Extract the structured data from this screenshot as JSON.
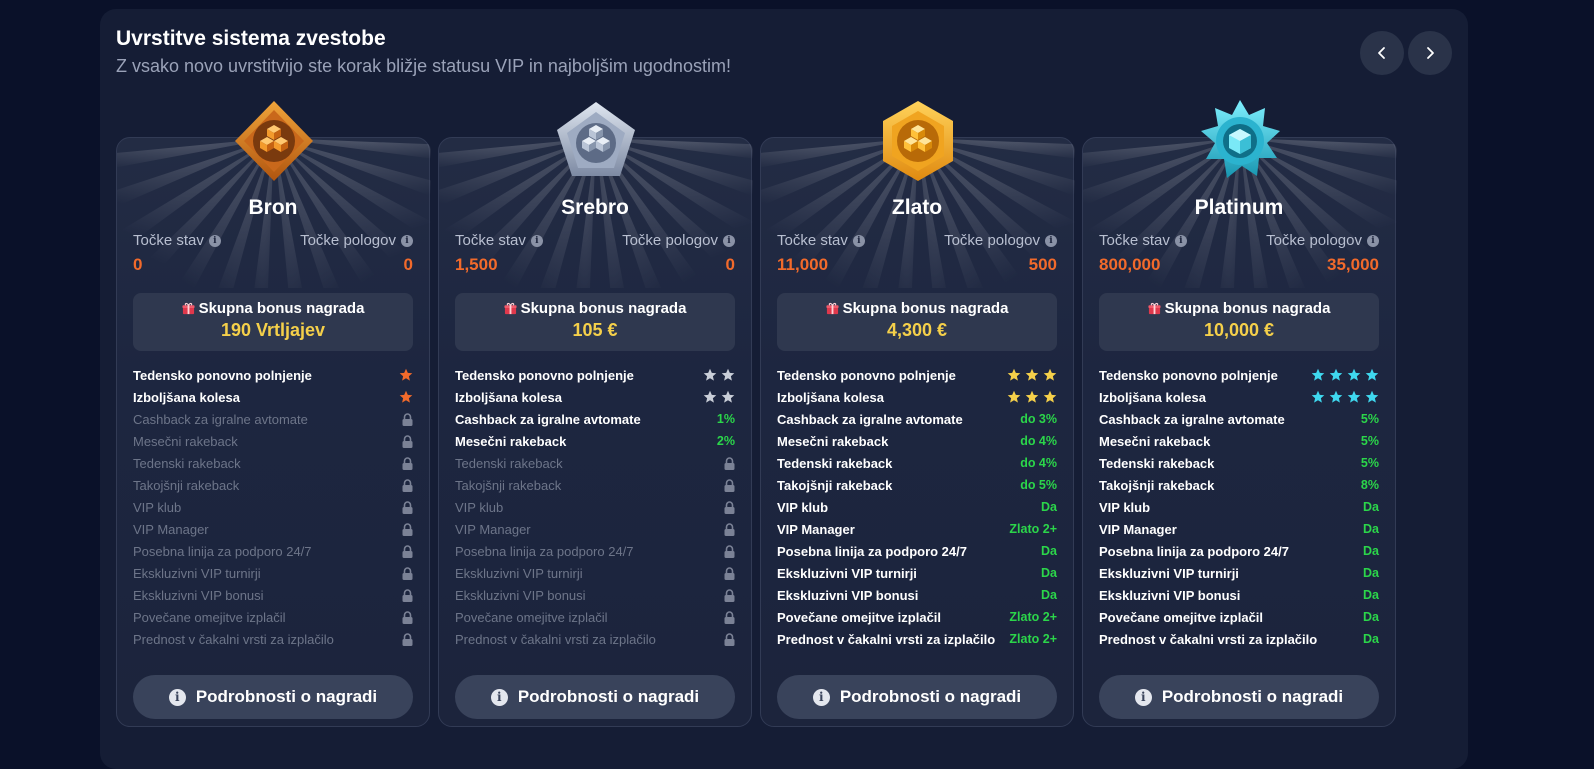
{
  "header": {
    "title": "Uvrstitve sistema zvestobe",
    "subtitle": "Z vsako novo uvrstitvijo ste korak bližje statusu VIP in najboljšim ugodnostim!"
  },
  "labels": {
    "bet_points": "Točke stav",
    "deposit_points": "Točke pologov",
    "bonus_label": "Skupna bonus nagrada",
    "details_button": "Podrobnosti o nagradi",
    "info_glyph": "i"
  },
  "colors": {
    "accent_orange": "#f26a2b",
    "bonus_yellow": "#f5d04a",
    "value_green": "#2bd64a"
  },
  "tiers": [
    {
      "name": "Bron",
      "badge_icon": "bronze-diamond-badge-icon",
      "bet_points": "0",
      "deposit_points": "0",
      "bonus": "190 Vrtljajev",
      "star_color": "#f26a2b",
      "features": [
        {
          "label": "Tedensko ponovno polnjenje",
          "kind": "stars",
          "stars": 1,
          "active": true
        },
        {
          "label": "Izboljšana kolesa",
          "kind": "stars",
          "stars": 1,
          "active": true
        },
        {
          "label": "Cashback za igralne avtomate",
          "kind": "lock",
          "active": false
        },
        {
          "label": "Mesečni rakeback",
          "kind": "lock",
          "active": false
        },
        {
          "label": "Tedenski rakeback",
          "kind": "lock",
          "active": false
        },
        {
          "label": "Takojšnji rakeback",
          "kind": "lock",
          "active": false
        },
        {
          "label": "VIP klub",
          "kind": "lock",
          "active": false
        },
        {
          "label": "VIP Manager",
          "kind": "lock",
          "active": false
        },
        {
          "label": "Posebna linija za podporo 24/7",
          "kind": "lock",
          "active": false
        },
        {
          "label": "Ekskluzivni VIP turnirji",
          "kind": "lock",
          "active": false
        },
        {
          "label": "Ekskluzivni VIP bonusi",
          "kind": "lock",
          "active": false
        },
        {
          "label": "Povečane omejitve izplačil",
          "kind": "lock",
          "active": false
        },
        {
          "label": "Prednost v čakalni vrsti za izplačilo",
          "kind": "lock",
          "active": false
        }
      ]
    },
    {
      "name": "Srebro",
      "badge_icon": "silver-pentagon-badge-icon",
      "bet_points": "1,500",
      "deposit_points": "0",
      "bonus": "105 €",
      "star_color": "#c9ced8",
      "features": [
        {
          "label": "Tedensko ponovno polnjenje",
          "kind": "stars",
          "stars": 2,
          "active": true
        },
        {
          "label": "Izboljšana kolesa",
          "kind": "stars",
          "stars": 2,
          "active": true
        },
        {
          "label": "Cashback za igralne avtomate",
          "kind": "value",
          "value": "1%",
          "active": true
        },
        {
          "label": "Mesečni rakeback",
          "kind": "value",
          "value": "2%",
          "active": true
        },
        {
          "label": "Tedenski rakeback",
          "kind": "lock",
          "active": false
        },
        {
          "label": "Takojšnji rakeback",
          "kind": "lock",
          "active": false
        },
        {
          "label": "VIP klub",
          "kind": "lock",
          "active": false
        },
        {
          "label": "VIP Manager",
          "kind": "lock",
          "active": false
        },
        {
          "label": "Posebna linija za podporo 24/7",
          "kind": "lock",
          "active": false
        },
        {
          "label": "Ekskluzivni VIP turnirji",
          "kind": "lock",
          "active": false
        },
        {
          "label": "Ekskluzivni VIP bonusi",
          "kind": "lock",
          "active": false
        },
        {
          "label": "Povečane omejitve izplačil",
          "kind": "lock",
          "active": false
        },
        {
          "label": "Prednost v čakalni vrsti za izplačilo",
          "kind": "lock",
          "active": false
        }
      ]
    },
    {
      "name": "Zlato",
      "badge_icon": "gold-hexagon-badge-icon",
      "bet_points": "11,000",
      "deposit_points": "500",
      "bonus": "4,300 €",
      "star_color": "#f5d04a",
      "features": [
        {
          "label": "Tedensko ponovno polnjenje",
          "kind": "stars",
          "stars": 3,
          "active": true
        },
        {
          "label": "Izboljšana kolesa",
          "kind": "stars",
          "stars": 3,
          "active": true
        },
        {
          "label": "Cashback za igralne avtomate",
          "kind": "value",
          "value": "do 3%",
          "active": true
        },
        {
          "label": "Mesečni rakeback",
          "kind": "value",
          "value": "do 4%",
          "active": true
        },
        {
          "label": "Tedenski rakeback",
          "kind": "value",
          "value": "do 4%",
          "active": true
        },
        {
          "label": "Takojšnji rakeback",
          "kind": "value",
          "value": "do 5%",
          "active": true
        },
        {
          "label": "VIP klub",
          "kind": "value",
          "value": "Da",
          "active": true
        },
        {
          "label": "VIP Manager",
          "kind": "value",
          "value": "Zlato 2+",
          "active": true
        },
        {
          "label": "Posebna linija za podporo 24/7",
          "kind": "value",
          "value": "Da",
          "active": true
        },
        {
          "label": "Ekskluzivni VIP turnirji",
          "kind": "value",
          "value": "Da",
          "active": true
        },
        {
          "label": "Ekskluzivni VIP bonusi",
          "kind": "value",
          "value": "Da",
          "active": true
        },
        {
          "label": "Povečane omejitve izplačil",
          "kind": "value",
          "value": "Zlato 2+",
          "active": true
        },
        {
          "label": "Prednost v čakalni vrsti za izplačilo",
          "kind": "value",
          "value": "Zlato 2+",
          "active": true
        }
      ]
    },
    {
      "name": "Platinum",
      "badge_icon": "platinum-star-badge-icon",
      "bet_points": "800,000",
      "deposit_points": "35,000",
      "bonus": "10,000 €",
      "star_color": "#3fd8ef",
      "features": [
        {
          "label": "Tedensko ponovno polnjenje",
          "kind": "stars",
          "stars": 4,
          "active": true
        },
        {
          "label": "Izboljšana kolesa",
          "kind": "stars",
          "stars": 4,
          "active": true
        },
        {
          "label": "Cashback za igralne avtomate",
          "kind": "value",
          "value": "5%",
          "active": true
        },
        {
          "label": "Mesečni rakeback",
          "kind": "value",
          "value": "5%",
          "active": true
        },
        {
          "label": "Tedenski rakeback",
          "kind": "value",
          "value": "5%",
          "active": true
        },
        {
          "label": "Takojšnji rakeback",
          "kind": "value",
          "value": "8%",
          "active": true
        },
        {
          "label": "VIP klub",
          "kind": "value",
          "value": "Da",
          "active": true
        },
        {
          "label": "VIP Manager",
          "kind": "value",
          "value": "Da",
          "active": true
        },
        {
          "label": "Posebna linija za podporo 24/7",
          "kind": "value",
          "value": "Da",
          "active": true
        },
        {
          "label": "Ekskluzivni VIP turnirji",
          "kind": "value",
          "value": "Da",
          "active": true
        },
        {
          "label": "Ekskluzivni VIP bonusi",
          "kind": "value",
          "value": "Da",
          "active": true
        },
        {
          "label": "Povečane omejitve izplačil",
          "kind": "value",
          "value": "Da",
          "active": true
        },
        {
          "label": "Prednost v čakalni vrsti za izplačilo",
          "kind": "value",
          "value": "Da",
          "active": true
        }
      ]
    }
  ]
}
